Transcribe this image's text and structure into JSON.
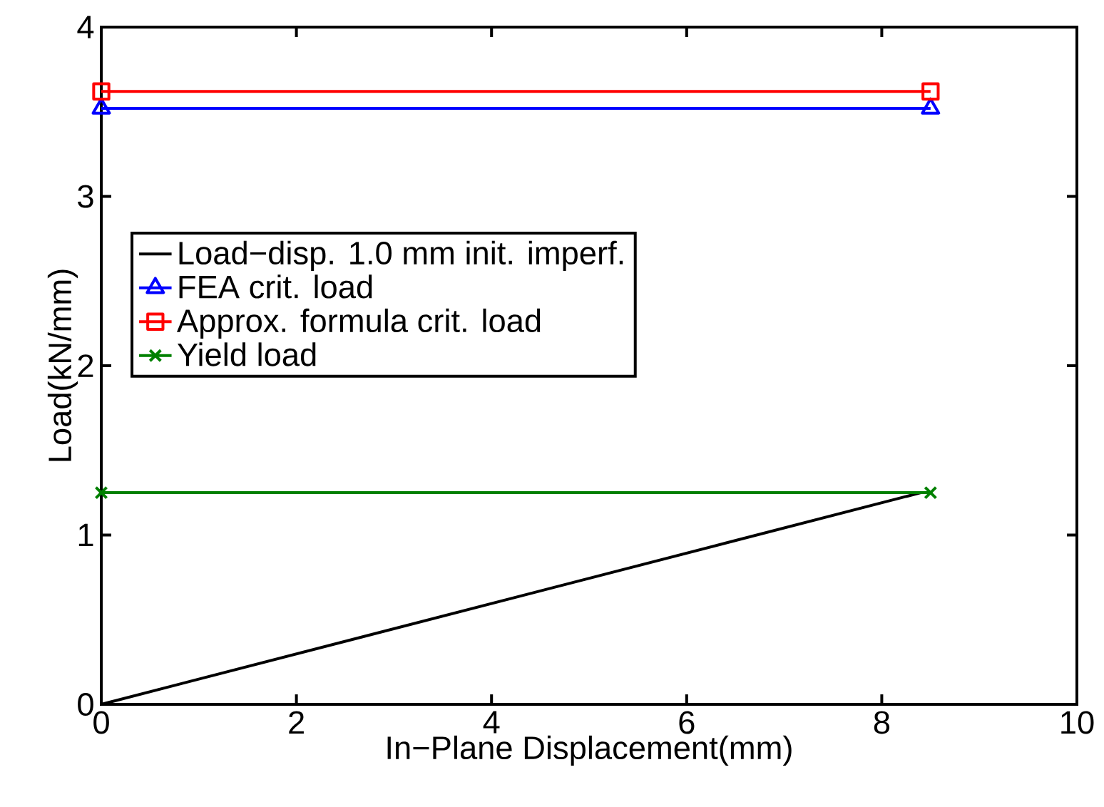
{
  "chart_data": {
    "type": "line",
    "xlabel": "In−Plane Displacement(mm)",
    "ylabel": "Load(kN/mm)",
    "xlim": [
      0,
      10
    ],
    "ylim": [
      0,
      4
    ],
    "xticks": [
      0,
      2,
      4,
      6,
      8,
      10
    ],
    "yticks": [
      0,
      1,
      2,
      3,
      4
    ],
    "grid": false,
    "legend": "left",
    "series": [
      {
        "name": "Load−disp. 1.0 mm init. imperf.",
        "color": "#000000",
        "marker": "none",
        "x": [
          0,
          8.4
        ],
        "values": [
          0,
          1.25
        ]
      },
      {
        "name": "FEA crit. load",
        "color": "#0000ff",
        "marker": "triangle",
        "x": [
          0,
          8.5
        ],
        "values": [
          3.52,
          3.52
        ]
      },
      {
        "name": "Approx. formula crit. load",
        "color": "#ff0000",
        "marker": "square",
        "x": [
          0,
          8.5
        ],
        "values": [
          3.62,
          3.62
        ]
      },
      {
        "name": "Yield load",
        "color": "#008000",
        "marker": "cross",
        "x": [
          0,
          8.5
        ],
        "values": [
          1.25,
          1.25
        ]
      }
    ]
  }
}
